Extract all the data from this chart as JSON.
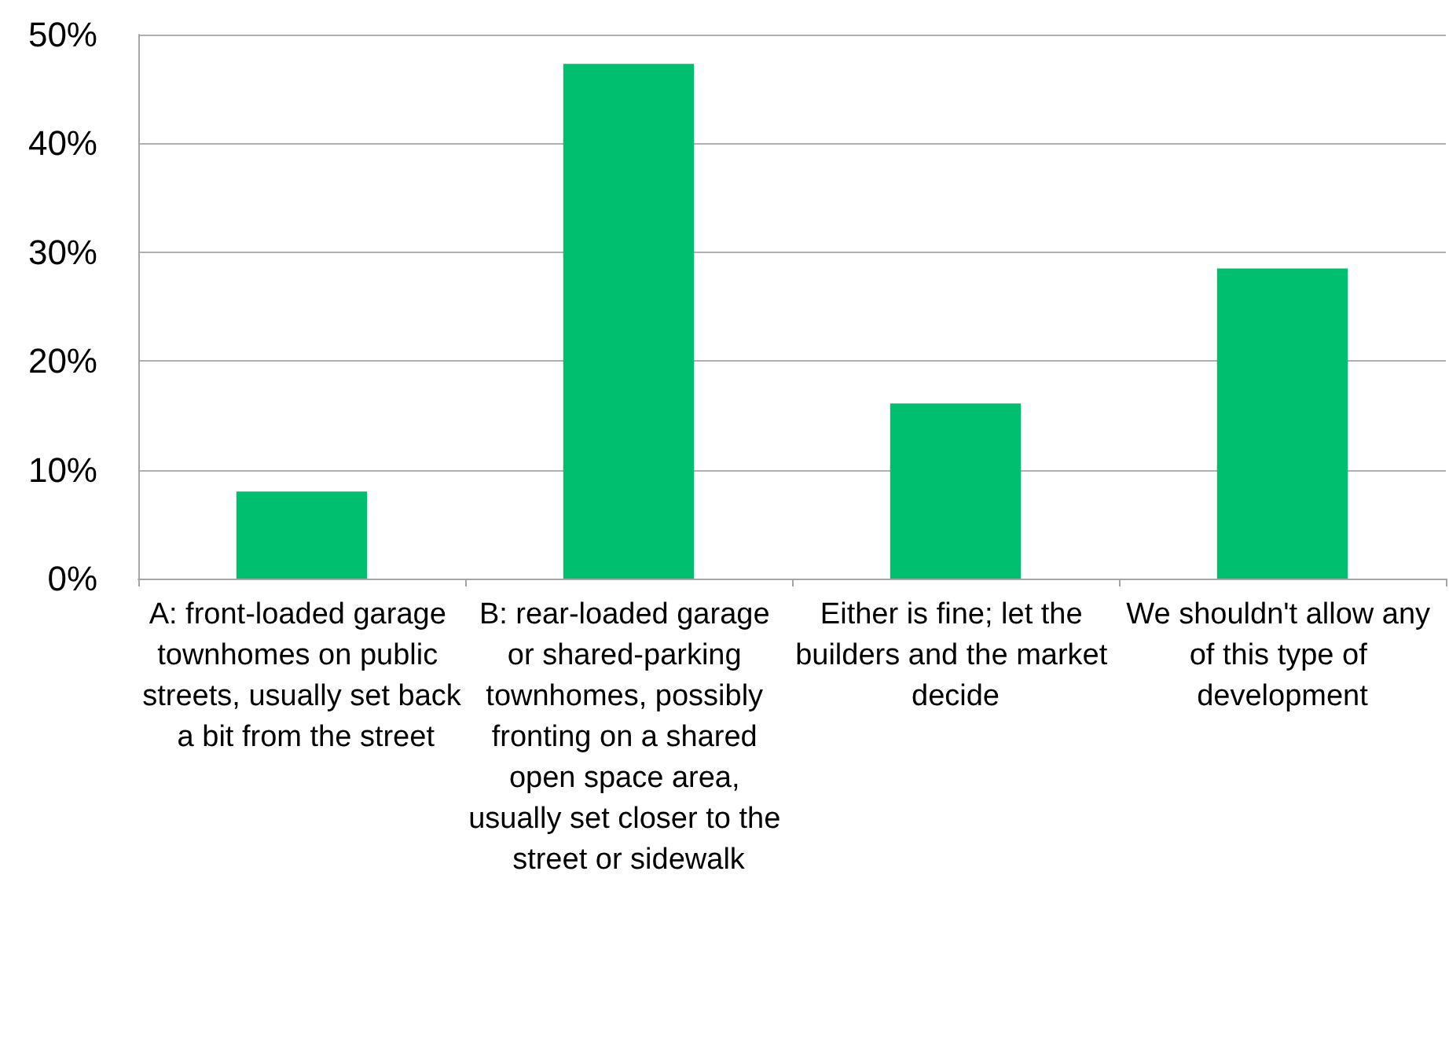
{
  "chart_data": {
    "type": "bar",
    "categories": [
      "A: front-loaded garage townhomes on public streets, usually set back a bit from the street",
      "B: rear-loaded garage or shared-parking townhomes, possibly fronting on a shared open space area, usually set closer to the street or sidewalk",
      "Either is fine; let the builders and the market decide",
      "We shouldn't allow any of this type of development"
    ],
    "values": [
      8.0,
      47.3,
      16.1,
      28.5
    ],
    "color": "#00bf6f",
    "ylim": [
      0,
      50
    ],
    "yticks": [
      {
        "value": 0,
        "label": "0%"
      },
      {
        "value": 10,
        "label": "10%"
      },
      {
        "value": 20,
        "label": "20%"
      },
      {
        "value": 30,
        "label": "30%"
      },
      {
        "value": 40,
        "label": "40%"
      },
      {
        "value": 50,
        "label": "50%"
      }
    ],
    "grid": true
  }
}
